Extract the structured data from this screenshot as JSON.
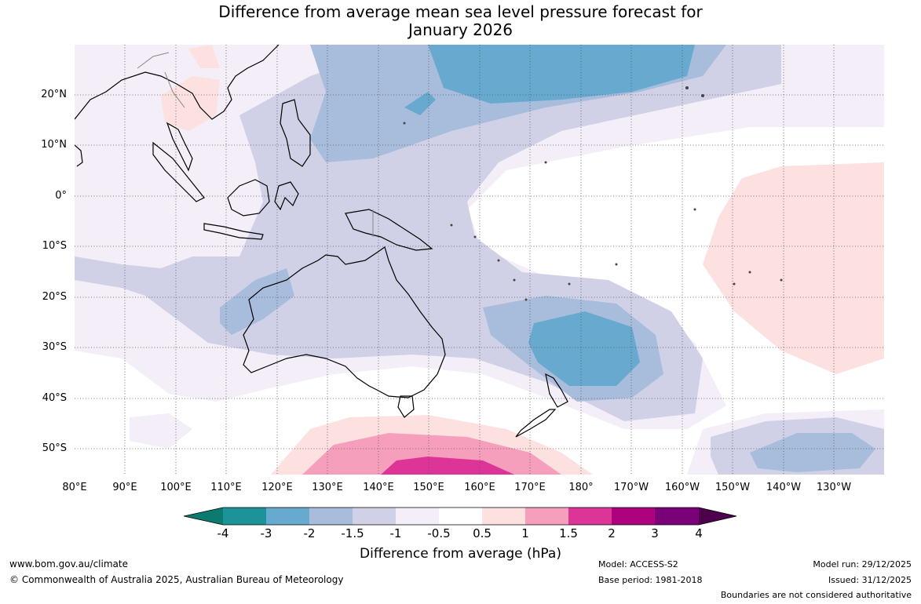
{
  "title": {
    "line1": "Difference from average mean sea level pressure forecast for",
    "line2": "January 2026"
  },
  "lat_labels": [
    "20°N",
    "10°N",
    "0°",
    "10°S",
    "20°S",
    "30°S",
    "40°S",
    "50°S"
  ],
  "lon_labels": [
    "80°E",
    "90°E",
    "100°E",
    "110°E",
    "120°E",
    "130°E",
    "140°E",
    "150°E",
    "160°E",
    "170°E",
    "180°",
    "170°W",
    "160°W",
    "150°W",
    "140°W",
    "130°W"
  ],
  "colorbar": {
    "title": "Difference from average (hPa)",
    "labels": [
      "-4",
      "-3",
      "-2",
      "-1.5",
      "-1",
      "-0.5",
      "0.5",
      "1",
      "1.5",
      "2",
      "3",
      "4"
    ],
    "colors": [
      "#0c7a6e",
      "#1b9399",
      "#67a9cf",
      "#a8bcdc",
      "#d0d1e6",
      "#f3eef7",
      "#ffffff",
      "#fde0e0",
      "#f69fbd",
      "#dd3497",
      "#ae017e",
      "#7a0177",
      "#4d004b"
    ]
  },
  "footer": {
    "website": "www.bom.gov.au/climate",
    "copyright": "© Commonwealth of Australia 2025, Australian Bureau of Meteorology",
    "model": "Model: ACCESS-S2",
    "base_period": "Base period: 1981-2018",
    "model_run": "Model run: 29/12/2025",
    "issued": "Issued: 31/12/2025",
    "disclaimer": "Boundaries are not considered authoritative"
  }
}
